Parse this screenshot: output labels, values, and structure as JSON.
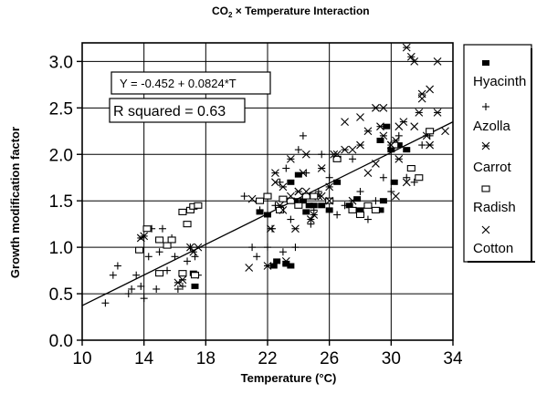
{
  "chart_data": {
    "type": "scatter",
    "title_main": "CO",
    "title_sub": "2",
    "title_rest": " × Temperature Interaction",
    "xlabel": "Temperature (°C)",
    "ylabel": "Growth modification factor",
    "xlim": [
      10,
      34
    ],
    "ylim": [
      0,
      3.2
    ],
    "xticks": [
      10,
      14,
      18,
      22,
      26,
      30,
      34
    ],
    "yticks": [
      0.0,
      0.5,
      1.0,
      1.5,
      2.0,
      2.5,
      3.0
    ],
    "xtick_labels": [
      "10",
      "14",
      "18",
      "22",
      "26",
      "30",
      "34"
    ],
    "ytick_labels": [
      "0.0",
      "0.5",
      "1.0",
      "1.5",
      "2.0",
      "2.5",
      "3.0"
    ],
    "grid": true,
    "legend_position": "right",
    "equation": "Y = -0.452 + 0.0824*T",
    "r_squared": "R squared = 0.63",
    "fit": {
      "intercept": -0.452,
      "slope": 0.0824
    },
    "series": [
      {
        "name": "Hyacinth",
        "marker": "filled-square",
        "points": [
          [
            17.3,
            0.58
          ],
          [
            17.2,
            0.72
          ],
          [
            21.5,
            1.38
          ],
          [
            22.0,
            1.35
          ],
          [
            22.4,
            0.8
          ],
          [
            22.6,
            0.85
          ],
          [
            23.2,
            0.82
          ],
          [
            23.5,
            0.8
          ],
          [
            23.5,
            1.7
          ],
          [
            23.8,
            1.5
          ],
          [
            24.0,
            1.78
          ],
          [
            24.3,
            1.5
          ],
          [
            24.5,
            1.38
          ],
          [
            24.7,
            1.45
          ],
          [
            25.0,
            1.45
          ],
          [
            25.5,
            1.45
          ],
          [
            26.0,
            1.4
          ],
          [
            26.5,
            1.7
          ],
          [
            27.3,
            1.45
          ],
          [
            27.8,
            1.52
          ],
          [
            28.0,
            1.4
          ],
          [
            29.3,
            1.4
          ],
          [
            29.3,
            2.15
          ],
          [
            29.5,
            1.5
          ],
          [
            29.7,
            2.3
          ],
          [
            30.0,
            2.05
          ],
          [
            30.2,
            1.7
          ],
          [
            30.5,
            2.1
          ],
          [
            31.0,
            2.05
          ]
        ]
      },
      {
        "name": "Azolla",
        "marker": "plus",
        "points": [
          [
            11.5,
            0.4
          ],
          [
            12.0,
            0.7
          ],
          [
            12.3,
            0.8
          ],
          [
            13.0,
            0.5
          ],
          [
            13.2,
            0.55
          ],
          [
            13.5,
            0.7
          ],
          [
            13.8,
            0.58
          ],
          [
            14.0,
            0.45
          ],
          [
            14.3,
            0.9
          ],
          [
            14.5,
            1.2
          ],
          [
            14.8,
            0.55
          ],
          [
            15.0,
            0.95
          ],
          [
            15.2,
            1.2
          ],
          [
            15.5,
            0.75
          ],
          [
            15.8,
            1.1
          ],
          [
            16.0,
            0.9
          ],
          [
            16.2,
            0.55
          ],
          [
            16.5,
            0.58
          ],
          [
            16.8,
            0.85
          ],
          [
            17.0,
            1.0
          ],
          [
            17.3,
            0.9
          ],
          [
            17.5,
            0.7
          ],
          [
            20.5,
            1.55
          ],
          [
            21.0,
            1.0
          ],
          [
            21.3,
            0.9
          ],
          [
            21.5,
            1.4
          ],
          [
            22.0,
            1.0
          ],
          [
            22.3,
            1.2
          ],
          [
            22.5,
            1.45
          ],
          [
            22.8,
            1.7
          ],
          [
            23.0,
            0.95
          ],
          [
            23.2,
            1.85
          ],
          [
            23.5,
            1.3
          ],
          [
            23.8,
            1.0
          ],
          [
            24.0,
            2.05
          ],
          [
            24.3,
            2.2
          ],
          [
            24.5,
            1.8
          ],
          [
            24.8,
            1.25
          ],
          [
            25.0,
            1.4
          ],
          [
            25.3,
            1.6
          ],
          [
            25.5,
            2.0
          ],
          [
            26.0,
            1.75
          ],
          [
            26.5,
            1.35
          ],
          [
            27.0,
            1.45
          ],
          [
            27.5,
            1.95
          ],
          [
            28.0,
            1.6
          ],
          [
            28.5,
            1.3
          ],
          [
            29.0,
            1.5
          ],
          [
            29.5,
            1.75
          ],
          [
            30.0,
            1.6
          ],
          [
            30.5,
            2.2
          ],
          [
            31.0,
            1.75
          ],
          [
            31.5,
            1.7
          ],
          [
            32.0,
            2.1
          ],
          [
            32.5,
            2.2
          ]
        ]
      },
      {
        "name": "Carrot",
        "marker": "asterisk",
        "points": [
          [
            13.8,
            1.1
          ],
          [
            14.0,
            1.12
          ],
          [
            16.2,
            0.62
          ],
          [
            16.5,
            0.65
          ],
          [
            17.0,
            1.0
          ],
          [
            17.2,
            0.95
          ],
          [
            17.5,
            1.0
          ],
          [
            22.0,
            0.8
          ],
          [
            22.2,
            1.2
          ],
          [
            22.5,
            1.8
          ],
          [
            22.8,
            1.45
          ],
          [
            23.0,
            1.65
          ],
          [
            23.2,
            0.85
          ],
          [
            23.5,
            1.95
          ],
          [
            23.8,
            1.2
          ],
          [
            24.0,
            1.6
          ],
          [
            24.3,
            1.8
          ],
          [
            24.5,
            2.0
          ],
          [
            24.8,
            1.3
          ],
          [
            25.0,
            1.35
          ],
          [
            25.3,
            1.55
          ],
          [
            25.5,
            1.85
          ],
          [
            26.0,
            1.65
          ],
          [
            26.3,
            2.0
          ],
          [
            27.0,
            2.05
          ],
          [
            27.5,
            1.5
          ],
          [
            28.0,
            2.1
          ],
          [
            28.5,
            2.25
          ],
          [
            29.0,
            2.5
          ],
          [
            29.3,
            2.3
          ],
          [
            29.5,
            2.2
          ],
          [
            30.0,
            2.1
          ],
          [
            30.3,
            2.15
          ],
          [
            30.5,
            1.95
          ],
          [
            30.8,
            2.35
          ],
          [
            31.0,
            3.15
          ],
          [
            31.3,
            3.05
          ],
          [
            31.5,
            3.0
          ],
          [
            31.8,
            2.45
          ],
          [
            32.0,
            2.65
          ],
          [
            32.3,
            2.2
          ],
          [
            32.5,
            2.1
          ],
          [
            33.0,
            2.45
          ]
        ]
      },
      {
        "name": "Radish",
        "marker": "open-square",
        "points": [
          [
            13.7,
            0.97
          ],
          [
            14.2,
            1.2
          ],
          [
            15.0,
            1.08
          ],
          [
            15.5,
            1.02
          ],
          [
            15.8,
            1.08
          ],
          [
            16.5,
            1.38
          ],
          [
            16.8,
            1.25
          ],
          [
            17.0,
            1.4
          ],
          [
            17.2,
            1.44
          ],
          [
            17.5,
            1.45
          ],
          [
            15.0,
            0.72
          ],
          [
            16.5,
            0.72
          ],
          [
            17.3,
            0.7
          ],
          [
            21.5,
            1.5
          ],
          [
            22.0,
            1.55
          ],
          [
            22.8,
            1.4
          ],
          [
            23.0,
            1.52
          ],
          [
            23.5,
            1.5
          ],
          [
            24.0,
            1.45
          ],
          [
            24.5,
            1.55
          ],
          [
            25.0,
            1.55
          ],
          [
            26.0,
            1.5
          ],
          [
            26.5,
            1.95
          ],
          [
            27.5,
            1.4
          ],
          [
            28.0,
            1.35
          ],
          [
            28.5,
            1.45
          ],
          [
            29.0,
            1.4
          ],
          [
            30.2,
            2.1
          ],
          [
            31.3,
            1.85
          ],
          [
            31.8,
            1.75
          ],
          [
            32.5,
            2.25
          ]
        ]
      },
      {
        "name": "Cotton",
        "marker": "cross",
        "points": [
          [
            20.8,
            0.78
          ],
          [
            21.0,
            1.52
          ],
          [
            22.5,
            1.7
          ],
          [
            23.0,
            1.4
          ],
          [
            23.5,
            1.55
          ],
          [
            24.0,
            1.6
          ],
          [
            24.5,
            1.6
          ],
          [
            25.5,
            1.55
          ],
          [
            26.0,
            1.5
          ],
          [
            26.5,
            2.0
          ],
          [
            27.0,
            2.35
          ],
          [
            27.5,
            2.05
          ],
          [
            28.0,
            2.4
          ],
          [
            28.5,
            1.8
          ],
          [
            29.0,
            1.9
          ],
          [
            29.5,
            2.5
          ],
          [
            30.0,
            2.1
          ],
          [
            30.3,
            1.55
          ],
          [
            30.5,
            2.3
          ],
          [
            31.0,
            1.7
          ],
          [
            31.5,
            2.3
          ],
          [
            32.0,
            2.6
          ],
          [
            32.5,
            2.7
          ],
          [
            33.0,
            3.0
          ],
          [
            33.5,
            2.25
          ]
        ]
      }
    ]
  },
  "legend": {
    "items": [
      "Hyacinth",
      "Azolla",
      "Carrot",
      "Radish",
      "Cotton"
    ]
  }
}
